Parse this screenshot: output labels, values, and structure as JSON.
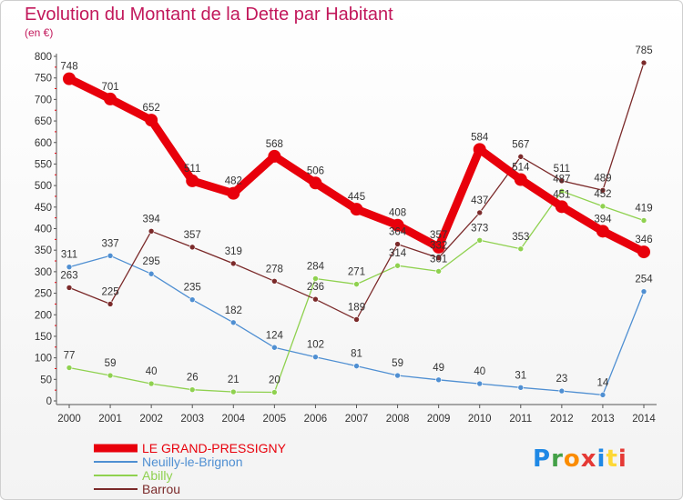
{
  "header": {
    "title": "Evolution du Montant de la Dette par Habitant",
    "subtitle": "(en €)"
  },
  "logo": {
    "text": "Proxiti",
    "colors": [
      "#1e88e5",
      "#43a047",
      "#fb8c00",
      "#e53935",
      "#1e88e5",
      "#fdd835",
      "#e53935"
    ]
  },
  "chart_data": {
    "type": "line",
    "x": [
      2000,
      2001,
      2002,
      2003,
      2004,
      2005,
      2006,
      2007,
      2008,
      2009,
      2010,
      2011,
      2012,
      2013,
      2014
    ],
    "ylim": [
      0,
      800
    ],
    "yticks": [
      0,
      50,
      100,
      150,
      200,
      250,
      300,
      350,
      400,
      450,
      500,
      550,
      600,
      650,
      700,
      750,
      800
    ],
    "grid": false,
    "legend_position": "bottom-left",
    "series": [
      {
        "name": "LE GRAND-PRESSIGNY",
        "color": "#e8000b",
        "emphasis": true,
        "values": [
          748,
          701,
          652,
          511,
          482,
          568,
          506,
          445,
          408,
          357,
          584,
          514,
          451,
          394,
          346
        ],
        "labels": [
          "748",
          "701",
          "652",
          "511",
          "482",
          "568",
          "506",
          "445",
          "408",
          "357",
          "584",
          "514",
          "451",
          "394",
          "346"
        ]
      },
      {
        "name": "Neuilly-le-Brignon",
        "color": "#4f8fd2",
        "emphasis": false,
        "values": [
          311,
          337,
          295,
          235,
          182,
          124,
          102,
          81,
          59,
          49,
          40,
          31,
          23,
          14,
          254
        ],
        "labels": [
          "311",
          "337",
          "295",
          "235",
          "182",
          "124",
          "102",
          "81",
          "59",
          "49",
          "40",
          "31",
          "23",
          "14",
          "254"
        ]
      },
      {
        "name": "Abilly",
        "color": "#8fd14f",
        "emphasis": false,
        "values": [
          77,
          59,
          40,
          26,
          21,
          20,
          284,
          271,
          314,
          301,
          373,
          353,
          487,
          452,
          419
        ],
        "labels": [
          "77",
          "59",
          "40",
          "26",
          "21",
          "20",
          "284",
          "271",
          "314",
          "301",
          "373",
          "353",
          "487",
          "452",
          "419"
        ]
      },
      {
        "name": "Barrou",
        "color": "#7b2a2a",
        "emphasis": false,
        "values": [
          263,
          225,
          394,
          357,
          319,
          278,
          236,
          189,
          364,
          332,
          437,
          567,
          511,
          489,
          785
        ],
        "labels": [
          "263",
          "225",
          "394",
          "357",
          "319",
          "278",
          "236",
          "189",
          "364",
          "332",
          "437",
          "567",
          "511",
          "489",
          "785"
        ]
      }
    ]
  }
}
